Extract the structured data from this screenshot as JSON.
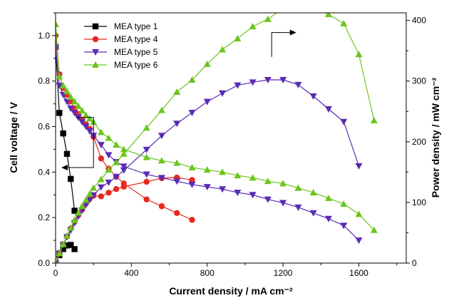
{
  "chart_data": {
    "type": "line",
    "title": "",
    "xlabel": "Current density / mA cm⁻²",
    "ylabel_left": "Cell voltage / V",
    "ylabel_right": "Power density / mW cm⁻²",
    "xlim": [
      0,
      1850
    ],
    "ylim_left": [
      0,
      1.1
    ],
    "ylim_right": [
      0,
      412.5
    ],
    "x_ticks": [
      "0",
      "400",
      "800",
      "1200",
      "1600"
    ],
    "y_left_ticks": [
      "0.0",
      "0.2",
      "0.4",
      "0.6",
      "0.8",
      "1.0"
    ],
    "y_right_ticks": [
      "0",
      "100",
      "200",
      "300",
      "400"
    ],
    "grid": false,
    "legend_position": "top-left",
    "series": [
      {
        "name": "MEA type 1",
        "color": "#000000",
        "marker": "square",
        "voltage": [
          [
            0,
            0.95
          ],
          [
            20,
            0.66
          ],
          [
            40,
            0.57
          ],
          [
            60,
            0.48
          ],
          [
            80,
            0.37
          ],
          [
            100,
            0.23
          ]
        ],
        "power": [
          [
            0,
            0
          ],
          [
            20,
            13
          ],
          [
            40,
            23
          ],
          [
            60,
            29
          ],
          [
            80,
            30
          ],
          [
            100,
            23
          ]
        ]
      },
      {
        "name": "MEA type 4",
        "color": "#e8281e",
        "marker": "circle",
        "voltage": [
          [
            0,
            1.0
          ],
          [
            20,
            0.83
          ],
          [
            40,
            0.77
          ],
          [
            60,
            0.74
          ],
          [
            80,
            0.71
          ],
          [
            100,
            0.68
          ],
          [
            120,
            0.655
          ],
          [
            140,
            0.63
          ],
          [
            160,
            0.61
          ],
          [
            180,
            0.59
          ],
          [
            200,
            0.555
          ],
          [
            240,
            0.46
          ],
          [
            280,
            0.415
          ],
          [
            320,
            0.38
          ],
          [
            360,
            0.35
          ],
          [
            480,
            0.28
          ],
          [
            560,
            0.25
          ],
          [
            640,
            0.22
          ],
          [
            720,
            0.19
          ]
        ],
        "power": [
          [
            0,
            0
          ],
          [
            20,
            17
          ],
          [
            40,
            31
          ],
          [
            60,
            44
          ],
          [
            80,
            57
          ],
          [
            100,
            68
          ],
          [
            120,
            79
          ],
          [
            140,
            88
          ],
          [
            160,
            98
          ],
          [
            180,
            106
          ],
          [
            200,
            111
          ],
          [
            240,
            110
          ],
          [
            280,
            116
          ],
          [
            320,
            122
          ],
          [
            360,
            126
          ],
          [
            480,
            134
          ],
          [
            560,
            140
          ],
          [
            640,
            141
          ],
          [
            720,
            137
          ]
        ]
      },
      {
        "name": "MEA type 5",
        "color": "#5a2bb3",
        "marker": "triangle-down",
        "voltage": [
          [
            0,
            0.95
          ],
          [
            20,
            0.78
          ],
          [
            40,
            0.74
          ],
          [
            60,
            0.71
          ],
          [
            80,
            0.68
          ],
          [
            100,
            0.66
          ],
          [
            120,
            0.64
          ],
          [
            140,
            0.62
          ],
          [
            160,
            0.6
          ],
          [
            180,
            0.58
          ],
          [
            200,
            0.56
          ],
          [
            240,
            0.52
          ],
          [
            280,
            0.475
          ],
          [
            320,
            0.445
          ],
          [
            360,
            0.425
          ],
          [
            480,
            0.39
          ],
          [
            560,
            0.375
          ],
          [
            640,
            0.36
          ],
          [
            720,
            0.345
          ],
          [
            800,
            0.335
          ],
          [
            880,
            0.325
          ],
          [
            960,
            0.31
          ],
          [
            1040,
            0.3
          ],
          [
            1120,
            0.28
          ],
          [
            1200,
            0.265
          ],
          [
            1280,
            0.245
          ],
          [
            1360,
            0.22
          ],
          [
            1440,
            0.195
          ],
          [
            1520,
            0.165
          ],
          [
            1600,
            0.1
          ]
        ],
        "power": [
          [
            0,
            0
          ],
          [
            20,
            16
          ],
          [
            40,
            30
          ],
          [
            60,
            43
          ],
          [
            80,
            54
          ],
          [
            100,
            66
          ],
          [
            120,
            77
          ],
          [
            140,
            87
          ],
          [
            160,
            96
          ],
          [
            180,
            104
          ],
          [
            200,
            112
          ],
          [
            240,
            125
          ],
          [
            280,
            133
          ],
          [
            320,
            142
          ],
          [
            360,
            153
          ],
          [
            480,
            187
          ],
          [
            560,
            210
          ],
          [
            640,
            230
          ],
          [
            720,
            248
          ],
          [
            800,
            266
          ],
          [
            880,
            280
          ],
          [
            960,
            293
          ],
          [
            1040,
            298
          ],
          [
            1120,
            302
          ],
          [
            1200,
            302
          ],
          [
            1280,
            294
          ],
          [
            1360,
            275
          ],
          [
            1440,
            254
          ],
          [
            1520,
            233
          ],
          [
            1600,
            160
          ]
        ]
      },
      {
        "name": "MEA type 6",
        "color": "#6cc51f",
        "marker": "triangle-up",
        "voltage": [
          [
            0,
            1.05
          ],
          [
            20,
            0.82
          ],
          [
            40,
            0.78
          ],
          [
            60,
            0.755
          ],
          [
            80,
            0.73
          ],
          [
            100,
            0.71
          ],
          [
            120,
            0.69
          ],
          [
            140,
            0.67
          ],
          [
            160,
            0.65
          ],
          [
            180,
            0.635
          ],
          [
            200,
            0.62
          ],
          [
            240,
            0.575
          ],
          [
            280,
            0.55
          ],
          [
            320,
            0.52
          ],
          [
            360,
            0.5
          ],
          [
            480,
            0.465
          ],
          [
            560,
            0.45
          ],
          [
            640,
            0.44
          ],
          [
            720,
            0.42
          ],
          [
            800,
            0.41
          ],
          [
            880,
            0.4
          ],
          [
            960,
            0.385
          ],
          [
            1040,
            0.375
          ],
          [
            1120,
            0.36
          ],
          [
            1200,
            0.35
          ],
          [
            1280,
            0.33
          ],
          [
            1360,
            0.31
          ],
          [
            1440,
            0.285
          ],
          [
            1520,
            0.26
          ],
          [
            1600,
            0.215
          ],
          [
            1680,
            0.145
          ]
        ],
        "power": [
          [
            0,
            0
          ],
          [
            20,
            16
          ],
          [
            40,
            31
          ],
          [
            60,
            45
          ],
          [
            80,
            58
          ],
          [
            100,
            71
          ],
          [
            120,
            83
          ],
          [
            140,
            94
          ],
          [
            160,
            104
          ],
          [
            180,
            114
          ],
          [
            200,
            124
          ],
          [
            240,
            138
          ],
          [
            280,
            154
          ],
          [
            320,
            166
          ],
          [
            360,
            180
          ],
          [
            480,
            223
          ],
          [
            560,
            252
          ],
          [
            640,
            282
          ],
          [
            720,
            302
          ],
          [
            800,
            328
          ],
          [
            880,
            352
          ],
          [
            960,
            370
          ],
          [
            1040,
            390
          ],
          [
            1120,
            402
          ],
          [
            1200,
            420
          ],
          [
            1280,
            422
          ],
          [
            1360,
            421
          ],
          [
            1440,
            410
          ],
          [
            1520,
            395
          ],
          [
            1600,
            344
          ],
          [
            1680,
            235
          ]
        ]
      }
    ]
  }
}
